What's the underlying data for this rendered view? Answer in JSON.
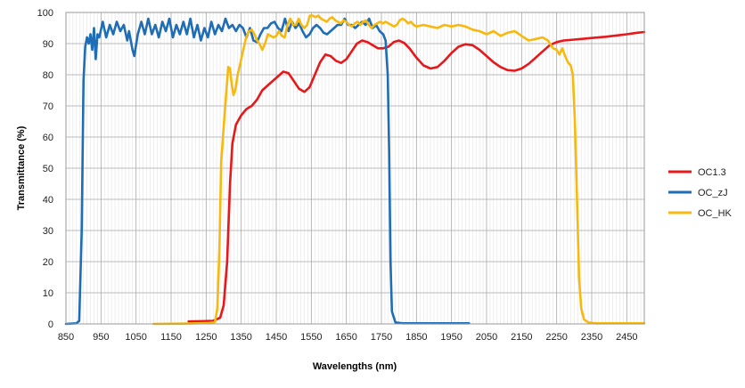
{
  "chart_data": {
    "type": "line",
    "title": "",
    "xlabel": "Wavelengths (nm)",
    "ylabel": "Transmittance (%)",
    "xlim": [
      850,
      2500
    ],
    "ylim": [
      0,
      100
    ],
    "x_ticks": [
      850,
      950,
      1050,
      1150,
      1250,
      1350,
      1450,
      1550,
      1650,
      1750,
      1850,
      1950,
      2050,
      2150,
      2250,
      2350,
      2450
    ],
    "y_ticks": [
      0,
      10,
      20,
      30,
      40,
      50,
      60,
      70,
      80,
      90,
      100
    ],
    "grid": true,
    "legend_position": "right",
    "series": [
      {
        "name": "OC1.3",
        "color": "#e8171a",
        "points": [
          [
            1200,
            0.8
          ],
          [
            1240,
            0.9
          ],
          [
            1270,
            1
          ],
          [
            1290,
            2
          ],
          [
            1300,
            6
          ],
          [
            1310,
            20
          ],
          [
            1318,
            45
          ],
          [
            1325,
            58
          ],
          [
            1335,
            64
          ],
          [
            1350,
            67
          ],
          [
            1365,
            69
          ],
          [
            1380,
            70
          ],
          [
            1395,
            72
          ],
          [
            1410,
            75
          ],
          [
            1430,
            77
          ],
          [
            1450,
            79
          ],
          [
            1470,
            81
          ],
          [
            1485,
            80.5
          ],
          [
            1500,
            78
          ],
          [
            1515,
            75.5
          ],
          [
            1530,
            74.5
          ],
          [
            1545,
            76
          ],
          [
            1560,
            80
          ],
          [
            1575,
            84
          ],
          [
            1590,
            86.5
          ],
          [
            1605,
            86
          ],
          [
            1620,
            84.5
          ],
          [
            1635,
            83.8
          ],
          [
            1650,
            85
          ],
          [
            1665,
            87.5
          ],
          [
            1680,
            90
          ],
          [
            1695,
            91
          ],
          [
            1710,
            90.5
          ],
          [
            1725,
            89.5
          ],
          [
            1740,
            88.5
          ],
          [
            1755,
            88.5
          ],
          [
            1770,
            89
          ],
          [
            1785,
            90.5
          ],
          [
            1800,
            91
          ],
          [
            1815,
            90.2
          ],
          [
            1830,
            88.5
          ],
          [
            1850,
            85.5
          ],
          [
            1870,
            83
          ],
          [
            1890,
            82
          ],
          [
            1910,
            82.5
          ],
          [
            1930,
            84.5
          ],
          [
            1950,
            87
          ],
          [
            1970,
            89
          ],
          [
            1990,
            89.8
          ],
          [
            2010,
            89.5
          ],
          [
            2030,
            88
          ],
          [
            2050,
            86
          ],
          [
            2070,
            84
          ],
          [
            2090,
            82.5
          ],
          [
            2110,
            81.5
          ],
          [
            2130,
            81.3
          ],
          [
            2150,
            82
          ],
          [
            2170,
            83.5
          ],
          [
            2190,
            85.5
          ],
          [
            2210,
            87.5
          ],
          [
            2230,
            89.5
          ],
          [
            2250,
            90.5
          ],
          [
            2270,
            91
          ],
          [
            2300,
            91.3
          ],
          [
            2330,
            91.6
          ],
          [
            2360,
            91.9
          ],
          [
            2390,
            92.2
          ],
          [
            2420,
            92.6
          ],
          [
            2450,
            93
          ],
          [
            2480,
            93.5
          ],
          [
            2500,
            93.7
          ]
        ]
      },
      {
        "name": "OC_zJ",
        "color": "#1f6db5",
        "points": [
          [
            850,
            0
          ],
          [
            880,
            0.2
          ],
          [
            888,
            1
          ],
          [
            895,
            30
          ],
          [
            900,
            78
          ],
          [
            905,
            89
          ],
          [
            910,
            92
          ],
          [
            915,
            90
          ],
          [
            920,
            93
          ],
          [
            925,
            88
          ],
          [
            930,
            95
          ],
          [
            935,
            85
          ],
          [
            940,
            93
          ],
          [
            945,
            92
          ],
          [
            955,
            97
          ],
          [
            965,
            92
          ],
          [
            975,
            96
          ],
          [
            985,
            93
          ],
          [
            995,
            97
          ],
          [
            1005,
            94
          ],
          [
            1015,
            96
          ],
          [
            1025,
            91
          ],
          [
            1030,
            94
          ],
          [
            1040,
            88
          ],
          [
            1045,
            86
          ],
          [
            1055,
            93
          ],
          [
            1065,
            97
          ],
          [
            1075,
            93
          ],
          [
            1085,
            98
          ],
          [
            1095,
            93
          ],
          [
            1105,
            96
          ],
          [
            1115,
            92
          ],
          [
            1125,
            97
          ],
          [
            1135,
            94
          ],
          [
            1145,
            98
          ],
          [
            1155,
            92
          ],
          [
            1165,
            96
          ],
          [
            1175,
            93
          ],
          [
            1185,
            97
          ],
          [
            1195,
            93
          ],
          [
            1205,
            98
          ],
          [
            1215,
            92
          ],
          [
            1225,
            96
          ],
          [
            1235,
            91
          ],
          [
            1245,
            95
          ],
          [
            1255,
            92
          ],
          [
            1265,
            97
          ],
          [
            1275,
            93
          ],
          [
            1285,
            96
          ],
          [
            1295,
            94
          ],
          [
            1305,
            98
          ],
          [
            1315,
            95
          ],
          [
            1325,
            96
          ],
          [
            1335,
            94
          ],
          [
            1345,
            96
          ],
          [
            1355,
            95
          ],
          [
            1365,
            92
          ],
          [
            1375,
            95
          ],
          [
            1385,
            91
          ],
          [
            1395,
            90.5
          ],
          [
            1405,
            93
          ],
          [
            1415,
            95
          ],
          [
            1425,
            95
          ],
          [
            1435,
            96.5
          ],
          [
            1445,
            97
          ],
          [
            1455,
            95
          ],
          [
            1465,
            94
          ],
          [
            1475,
            98
          ],
          [
            1485,
            94
          ],
          [
            1495,
            97
          ],
          [
            1505,
            95
          ],
          [
            1515,
            96.5
          ],
          [
            1525,
            94
          ],
          [
            1535,
            92
          ],
          [
            1545,
            93
          ],
          [
            1555,
            95
          ],
          [
            1565,
            96
          ],
          [
            1575,
            95
          ],
          [
            1585,
            93.5
          ],
          [
            1595,
            93
          ],
          [
            1605,
            94
          ],
          [
            1615,
            95
          ],
          [
            1625,
            96
          ],
          [
            1635,
            96
          ],
          [
            1645,
            98
          ],
          [
            1655,
            96
          ],
          [
            1665,
            96
          ],
          [
            1675,
            95
          ],
          [
            1685,
            96
          ],
          [
            1695,
            97
          ],
          [
            1705,
            96
          ],
          [
            1715,
            98
          ],
          [
            1725,
            95
          ],
          [
            1735,
            96
          ],
          [
            1745,
            94
          ],
          [
            1755,
            93
          ],
          [
            1762,
            91
          ],
          [
            1768,
            80
          ],
          [
            1772,
            55
          ],
          [
            1776,
            20
          ],
          [
            1780,
            4
          ],
          [
            1790,
            0.5
          ],
          [
            1810,
            0.2
          ],
          [
            1900,
            0.2
          ],
          [
            2000,
            0.2
          ]
        ]
      },
      {
        "name": "OC_HK",
        "color": "#f7b90f",
        "points": [
          [
            1100,
            0
          ],
          [
            1200,
            0.1
          ],
          [
            1260,
            0.3
          ],
          [
            1275,
            0.6
          ],
          [
            1282,
            5
          ],
          [
            1288,
            25
          ],
          [
            1293,
            52
          ],
          [
            1298,
            60
          ],
          [
            1303,
            68
          ],
          [
            1308,
            75
          ],
          [
            1313,
            82.5
          ],
          [
            1318,
            82
          ],
          [
            1323,
            77
          ],
          [
            1328,
            73.5
          ],
          [
            1333,
            75
          ],
          [
            1340,
            80
          ],
          [
            1348,
            84
          ],
          [
            1356,
            88
          ],
          [
            1364,
            92
          ],
          [
            1372,
            94
          ],
          [
            1380,
            94.5
          ],
          [
            1388,
            93
          ],
          [
            1395,
            91
          ],
          [
            1402,
            90
          ],
          [
            1410,
            88
          ],
          [
            1418,
            90
          ],
          [
            1426,
            93
          ],
          [
            1434,
            92.5
          ],
          [
            1442,
            92
          ],
          [
            1450,
            92.5
          ],
          [
            1458,
            94
          ],
          [
            1466,
            92.5
          ],
          [
            1474,
            92
          ],
          [
            1482,
            96
          ],
          [
            1490,
            98
          ],
          [
            1498,
            96
          ],
          [
            1506,
            96
          ],
          [
            1514,
            98
          ],
          [
            1522,
            96
          ],
          [
            1530,
            95
          ],
          [
            1538,
            96
          ],
          [
            1546,
            99
          ],
          [
            1554,
            99
          ],
          [
            1562,
            98.5
          ],
          [
            1570,
            99
          ],
          [
            1578,
            98
          ],
          [
            1586,
            97.5
          ],
          [
            1594,
            97
          ],
          [
            1602,
            98
          ],
          [
            1610,
            98.5
          ],
          [
            1618,
            97.5
          ],
          [
            1626,
            97
          ],
          [
            1634,
            96.5
          ],
          [
            1642,
            97.5
          ],
          [
            1650,
            97
          ],
          [
            1658,
            96
          ],
          [
            1666,
            95.5
          ],
          [
            1674,
            96.5
          ],
          [
            1682,
            97
          ],
          [
            1690,
            96
          ],
          [
            1698,
            97
          ],
          [
            1706,
            97.5
          ],
          [
            1714,
            96
          ],
          [
            1722,
            95
          ],
          [
            1730,
            96
          ],
          [
            1738,
            96.5
          ],
          [
            1746,
            97
          ],
          [
            1754,
            96.5
          ],
          [
            1762,
            97
          ],
          [
            1770,
            96.5
          ],
          [
            1778,
            96
          ],
          [
            1786,
            95.5
          ],
          [
            1794,
            96
          ],
          [
            1802,
            97.5
          ],
          [
            1810,
            98
          ],
          [
            1818,
            97.5
          ],
          [
            1826,
            96.5
          ],
          [
            1834,
            97
          ],
          [
            1842,
            96
          ],
          [
            1850,
            95.5
          ],
          [
            1870,
            96
          ],
          [
            1890,
            95.5
          ],
          [
            1910,
            95
          ],
          [
            1930,
            96
          ],
          [
            1950,
            95.5
          ],
          [
            1970,
            96
          ],
          [
            1990,
            95.5
          ],
          [
            2010,
            94.5
          ],
          [
            2030,
            94
          ],
          [
            2050,
            93
          ],
          [
            2070,
            94
          ],
          [
            2090,
            92.5
          ],
          [
            2110,
            93.5
          ],
          [
            2130,
            94
          ],
          [
            2150,
            92.5
          ],
          [
            2170,
            91
          ],
          [
            2190,
            91.5
          ],
          [
            2210,
            92
          ],
          [
            2225,
            91
          ],
          [
            2240,
            88.5
          ],
          [
            2250,
            88
          ],
          [
            2258,
            86.5
          ],
          [
            2266,
            88.5
          ],
          [
            2274,
            86
          ],
          [
            2282,
            84
          ],
          [
            2290,
            83
          ],
          [
            2296,
            80
          ],
          [
            2302,
            65
          ],
          [
            2308,
            40
          ],
          [
            2314,
            15
          ],
          [
            2320,
            5
          ],
          [
            2328,
            1.5
          ],
          [
            2340,
            0.5
          ],
          [
            2360,
            0.2
          ],
          [
            2400,
            0.2
          ],
          [
            2500,
            0.2
          ]
        ]
      }
    ]
  }
}
